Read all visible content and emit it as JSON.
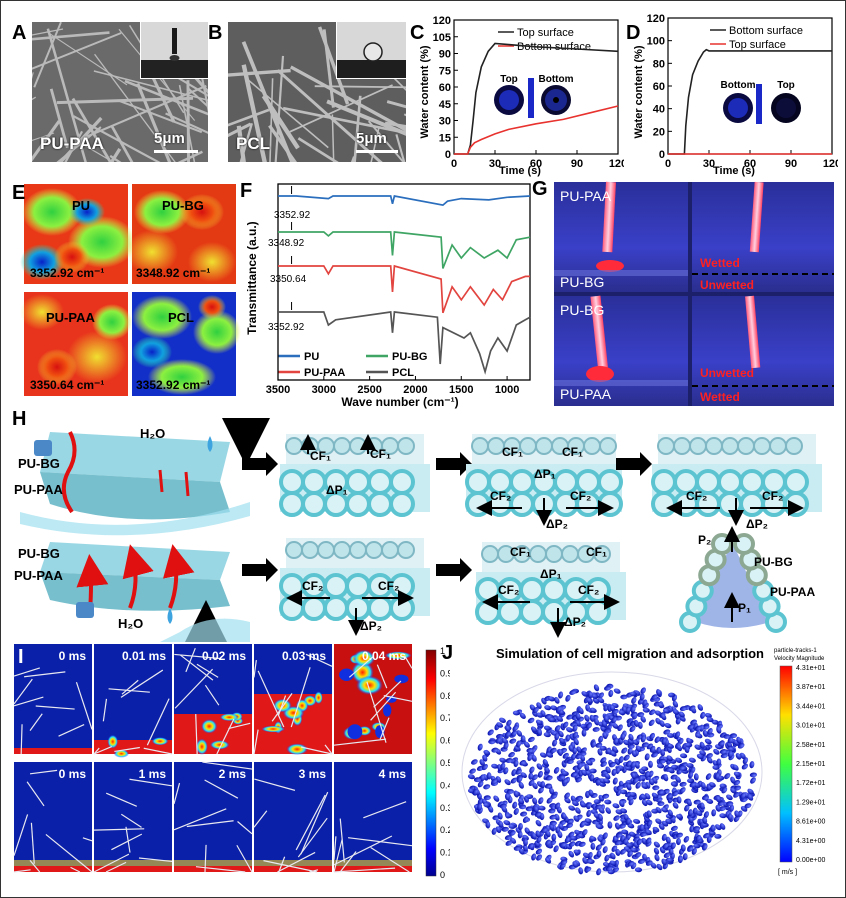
{
  "panels": {
    "A": "A",
    "B": "B",
    "C": "C",
    "D": "D",
    "E": "E",
    "F": "F",
    "G": "G",
    "H": "H",
    "I": "I",
    "J": "J"
  },
  "a": {
    "material": "PU-PAA",
    "scale": "5μm"
  },
  "b": {
    "material": "PCL",
    "scale": "5μm"
  },
  "c": {
    "ylabel": "Water content (%)",
    "xlabel": "Time (s)",
    "legend_top": "Top surface",
    "legend_bottom": "Bottom surface",
    "inset_left": "Top",
    "inset_right": "Bottom"
  },
  "d": {
    "ylabel": "Water content (%)",
    "xlabel": "Time (s)",
    "legend_bottom": "Bottom surface",
    "legend_top": "Top surface",
    "inset_left": "Bottom",
    "inset_right": "Top"
  },
  "e": {
    "tiles": [
      {
        "name": "PU",
        "wn": "3352.92 cm⁻¹"
      },
      {
        "name": "PU-BG",
        "wn": "3348.92 cm⁻¹"
      },
      {
        "name": "PU-PAA",
        "wn": "3350.64 cm⁻¹"
      },
      {
        "name": "PCL",
        "wn": "3352.92 cm⁻¹"
      }
    ]
  },
  "f": {
    "ylabel": "Transmittance (a.u.)",
    "xlabel": "Wave number (cm⁻¹)",
    "peaks": [
      "3352.92",
      "3348.92",
      "3350.64",
      "3352.92"
    ],
    "legend": [
      "PU",
      "PU-BG",
      "PU-PAA",
      "PCL"
    ]
  },
  "g": {
    "top_upper": "PU-PAA",
    "top_lower": "PU-BG",
    "top_wetted": "Wetted",
    "top_unwetted": "Unwetted",
    "bot_upper": "PU-BG",
    "bot_lower": "PU-PAA",
    "bot_unwetted": "Unwetted",
    "bot_wetted": "Wetted"
  },
  "h": {
    "layer1": "PU-BG",
    "layer2": "PU-PAA",
    "water": "H₂O",
    "cf1": "CF₁",
    "cf2": "CF₂",
    "dp1": "ΔP₁",
    "dp2": "ΔP₂",
    "p1": "P₁",
    "p2": "P₂",
    "cone_top": "PU-BG",
    "cone_bot": "PU-PAA"
  },
  "i": {
    "row1": [
      "0 ms",
      "0.01 ms",
      "0.02 ms",
      "0.03 ms",
      "0.04 ms"
    ],
    "row2": [
      "0 ms",
      "1 ms",
      "2 ms",
      "3 ms",
      "4 ms"
    ],
    "scale": [
      "1",
      "0.9",
      "0.8",
      "0.7",
      "0.6",
      "0.5",
      "0.4",
      "0.3",
      "0.2",
      "0.1",
      "0"
    ]
  },
  "j": {
    "title": "Simulation of cell migration and adsorption",
    "legend_title1": "particle-tracks-1",
    "legend_title2": "Velocity Magnitude",
    "scale": [
      "4.31e+01",
      "3.87e+01",
      "3.44e+01",
      "3.01e+01",
      "2.58e+01",
      "2.15e+01",
      "1.72e+01",
      "1.29e+01",
      "8.61e+00",
      "4.31e+00",
      "0.00e+00"
    ],
    "unit": "[ m/s ]"
  },
  "chart_data": [
    {
      "type": "line",
      "xlabel": "Time (s)",
      "ylabel": "Water content (%)",
      "xlim": [
        0,
        120
      ],
      "ylim": [
        0,
        120
      ],
      "xticks": [
        0,
        30,
        60,
        90,
        120
      ],
      "yticks": [
        0,
        15,
        30,
        45,
        60,
        75,
        90,
        105,
        120
      ],
      "series": [
        {
          "name": "Top surface",
          "color": "#222222",
          "x": [
            0,
            10,
            12,
            14,
            16,
            20,
            25,
            30,
            40,
            60,
            90,
            120
          ],
          "y": [
            0,
            0,
            8,
            30,
            55,
            78,
            92,
            99,
            98,
            96,
            94,
            92
          ]
        },
        {
          "name": "Bottom surface",
          "color": "#e8322e",
          "x": [
            0,
            10,
            12,
            15,
            20,
            30,
            40,
            60,
            80,
            100,
            120
          ],
          "y": [
            0,
            0,
            6,
            10,
            13,
            18,
            22,
            27,
            31,
            37,
            43
          ]
        }
      ]
    },
    {
      "type": "line",
      "xlabel": "Time (s)",
      "ylabel": "Water content (%)",
      "xlim": [
        0,
        120
      ],
      "ylim": [
        0,
        120
      ],
      "xticks": [
        0,
        30,
        60,
        90,
        120
      ],
      "yticks": [
        0,
        20,
        40,
        60,
        80,
        100,
        120
      ],
      "series": [
        {
          "name": "Bottom surface",
          "color": "#222222",
          "x": [
            0,
            12,
            13,
            15,
            18,
            22,
            26,
            28,
            30,
            60,
            90,
            120
          ],
          "y": [
            0,
            0,
            25,
            50,
            70,
            82,
            90,
            92,
            91,
            91,
            91,
            91
          ]
        },
        {
          "name": "Top surface",
          "color": "#e8322e",
          "x": [
            0,
            120
          ],
          "y": [
            0,
            0
          ]
        }
      ]
    },
    {
      "type": "line",
      "xlabel": "Wave number (cm⁻¹)",
      "ylabel": "Transmittance (a.u.)",
      "xlim": [
        3500,
        750
      ],
      "xticks": [
        3500,
        3000,
        2500,
        2000,
        1500,
        1000
      ],
      "series": [
        {
          "name": "PU",
          "color": "#2a6ebd",
          "offset": 3,
          "x": [
            3500,
            3352,
            3300,
            2950,
            2900,
            2270,
            2250,
            2230,
            1700,
            1650,
            1500,
            1200,
            1000,
            750
          ],
          "y": [
            0,
            0,
            0,
            -0.1,
            0,
            0,
            -0.3,
            0,
            -0.35,
            -0.2,
            -0.1,
            -0.15,
            -0.05,
            0
          ]
        },
        {
          "name": "PU-BG",
          "color": "#3fa564",
          "offset": 2,
          "x": [
            3500,
            3348,
            3000,
            2950,
            2900,
            2270,
            2250,
            2230,
            1720,
            1700,
            1600,
            1500,
            1400,
            1250,
            1100,
            1000,
            900,
            750
          ],
          "y": [
            0,
            0,
            0,
            -0.15,
            0,
            0,
            -0.9,
            0,
            -0.2,
            -1.4,
            -0.5,
            -1.0,
            -0.6,
            -1.0,
            -0.7,
            -1.0,
            -0.3,
            -0.2
          ]
        },
        {
          "name": "PU-PAA",
          "color": "#e2443f",
          "offset": 1,
          "x": [
            3500,
            3350,
            3000,
            2950,
            2900,
            2270,
            2250,
            2230,
            1720,
            1700,
            1600,
            1500,
            1400,
            1250,
            1150,
            1050,
            950,
            800,
            750
          ],
          "y": [
            0,
            0,
            0,
            -0.3,
            0,
            0,
            -1.0,
            0,
            -0.5,
            -1.8,
            -0.8,
            -1.3,
            -0.8,
            -1.5,
            -0.9,
            -1.3,
            -0.6,
            -0.4,
            -0.4
          ]
        },
        {
          "name": "PCL",
          "color": "#555555",
          "offset": 0,
          "x": [
            3500,
            3352,
            3000,
            2950,
            2870,
            2270,
            2250,
            2230,
            1760,
            1730,
            1700,
            1470,
            1400,
            1300,
            1240,
            1180,
            1100,
            1000,
            900,
            800,
            750
          ],
          "y": [
            0,
            0,
            0,
            -0.5,
            -0.3,
            0,
            -0.8,
            0,
            -0.2,
            -2.0,
            -0.6,
            -1.0,
            -0.8,
            -1.6,
            -2.3,
            -1.5,
            -1.0,
            -1.5,
            -0.5,
            -0.3,
            -0.2
          ]
        }
      ]
    }
  ]
}
